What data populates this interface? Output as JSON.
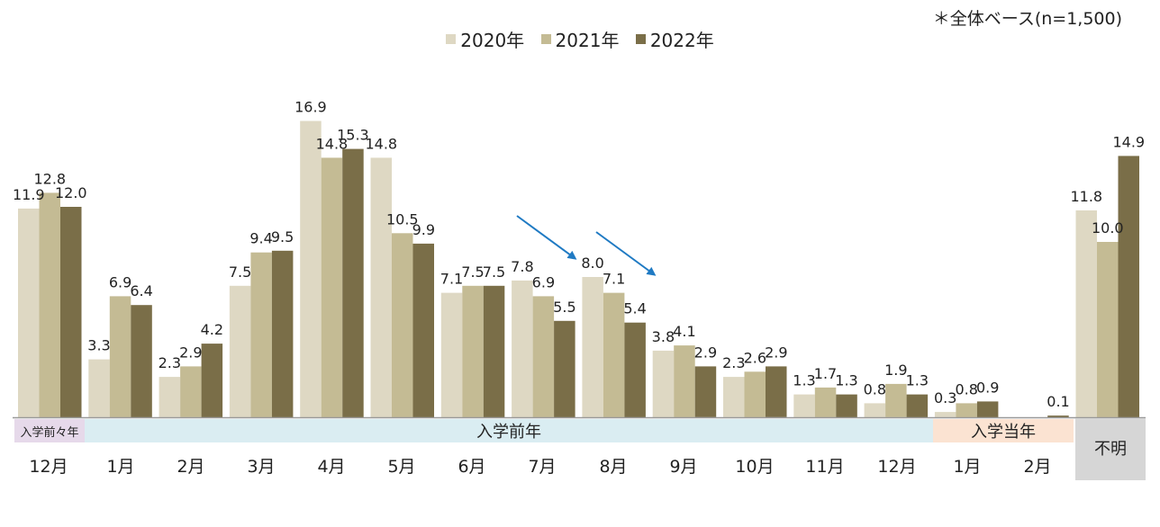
{
  "note": "＊全体ベース(n=1,500)",
  "colors": {
    "s2020": "#ded8c3",
    "s2021": "#c4bb94",
    "s2022": "#7a6e48",
    "arrow": "#1f7ac3",
    "band_before2": "#e6d9ea",
    "band_before1": "#daedf2",
    "band_entry": "#fbe3d2",
    "band_unknown": "#d6d6d6"
  },
  "chart_data": {
    "type": "bar",
    "categories": [
      "12月",
      "1月",
      "2月",
      "3月",
      "4月",
      "5月",
      "6月",
      "7月",
      "8月",
      "9月",
      "10月",
      "11月",
      "12月",
      "1月",
      "2月",
      "不明"
    ],
    "series": [
      {
        "name": "2020年",
        "values": [
          11.9,
          3.3,
          2.3,
          7.5,
          16.9,
          14.8,
          7.1,
          7.8,
          8.0,
          3.8,
          2.3,
          1.3,
          0.8,
          0.3,
          null,
          11.8
        ]
      },
      {
        "name": "2021年",
        "values": [
          12.8,
          6.9,
          2.9,
          9.4,
          14.8,
          10.5,
          7.5,
          6.9,
          7.1,
          4.1,
          2.6,
          1.7,
          1.9,
          0.8,
          null,
          10.0
        ]
      },
      {
        "name": "2022年",
        "values": [
          12.0,
          6.4,
          4.2,
          9.5,
          15.3,
          9.9,
          7.5,
          5.5,
          5.4,
          2.9,
          2.9,
          1.3,
          1.3,
          0.9,
          0.1,
          14.9
        ]
      }
    ],
    "groups": [
      {
        "label": "入学前々年",
        "from": 0,
        "to": 0
      },
      {
        "label": "入学前年",
        "from": 1,
        "to": 12
      },
      {
        "label": "入学当年",
        "from": 13,
        "to": 14
      }
    ],
    "legend_position": "top-center",
    "grid": false
  }
}
